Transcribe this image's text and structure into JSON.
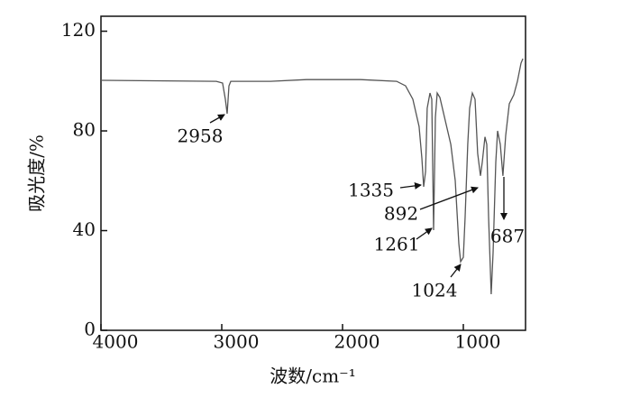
{
  "chart_data": {
    "type": "line",
    "xlabel": "波数/cm⁻¹",
    "ylabel": "吸光度/%",
    "x": [
      4000,
      3045,
      2993,
      2970,
      2955,
      2940,
      2925,
      2597,
      2299,
      1851,
      1552,
      1478,
      1418,
      1366,
      1343,
      1328,
      1313,
      1299,
      1276,
      1261,
      1246,
      1231,
      1216,
      1194,
      1164,
      1104,
      1067,
      1037,
      1022,
      1000,
      985,
      963,
      948,
      925,
      903,
      881,
      858,
      843,
      821,
      806,
      791,
      769,
      754,
      731,
      716,
      694,
      672,
      649,
      619,
      582,
      552,
      522,
      507
    ],
    "values": [
      100.3,
      99.9,
      99.2,
      92.7,
      86.9,
      98.1,
      99.9,
      99.9,
      100.6,
      100.6,
      99.9,
      98.1,
      92.7,
      81.8,
      69.1,
      57.6,
      63.7,
      89.1,
      95.2,
      92.7,
      40.2,
      85.4,
      95.2,
      93.4,
      87.2,
      74.6,
      60.1,
      34.8,
      27.5,
      29.3,
      45.6,
      74.6,
      89.1,
      95.2,
      92.7,
      71.0,
      62.0,
      67.4,
      77.6,
      74.6,
      45.6,
      14.5,
      31.1,
      67.4,
      80.0,
      74.6,
      62.0,
      78.2,
      90.9,
      94.5,
      99.9,
      107.2,
      109.0
    ],
    "color": "#555555",
    "xlim": [
      4000,
      485
    ],
    "ylim": [
      0,
      126
    ],
    "xticks": [
      4000,
      3000,
      2000,
      1000
    ],
    "yticks": [
      0,
      40,
      80,
      120
    ],
    "annotations": [
      "2958",
      "1335",
      "892",
      "1261",
      "1024",
      "687"
    ]
  }
}
